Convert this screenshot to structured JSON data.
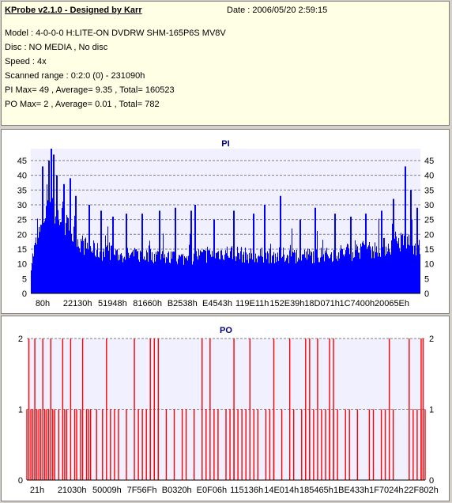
{
  "header": {
    "title": "KProbe v2.1.0 - Designed by Karr",
    "date": "Date : 2006/05/20 2:59:15",
    "lines": [
      "Model : 4-0-0-0 H:LITE-ON DVDRW SHM-165P6S MV8V",
      "Disc : NO MEDIA , No disc",
      "Speed : 4x",
      "Scanned range : 0:2:0 (0) - 231090h",
      "PI Max= 49 , Average= 9.35 , Total= 160523",
      "PO Max= 2 , Average= 0.01 , Total= 782"
    ]
  },
  "colors": {
    "pi": "#0000ff",
    "po": "#ff0000",
    "plot_bg": "#f0f0ff",
    "grid": "#808080"
  },
  "chart_data": [
    {
      "type": "bar",
      "title": "PI",
      "ylim": [
        0,
        49
      ],
      "yticks": [
        0,
        5,
        10,
        15,
        20,
        25,
        30,
        35,
        40,
        45
      ],
      "xtick_labels": [
        "80h",
        "22130h",
        "51948h",
        "81660h",
        "B2538h",
        "E4543h",
        "119E11h",
        "152E39h",
        "18D071h",
        "1C7400h",
        "20065Eh"
      ],
      "grid": true,
      "profile": [
        [
          0,
          10
        ],
        [
          0.01,
          16
        ],
        [
          0.025,
          22
        ],
        [
          0.04,
          30
        ],
        [
          0.05,
          34
        ],
        [
          0.055,
          36
        ],
        [
          0.06,
          27
        ],
        [
          0.075,
          26
        ],
        [
          0.085,
          24
        ],
        [
          0.1,
          21
        ],
        [
          0.12,
          18
        ],
        [
          0.14,
          16
        ],
        [
          0.16,
          15
        ],
        [
          0.18,
          14
        ],
        [
          0.2,
          14
        ],
        [
          0.23,
          13
        ],
        [
          0.26,
          13
        ],
        [
          0.3,
          13
        ],
        [
          0.33,
          13
        ],
        [
          0.36,
          12
        ],
        [
          0.4,
          12
        ],
        [
          0.43,
          13
        ],
        [
          0.46,
          13
        ],
        [
          0.49,
          14
        ],
        [
          0.52,
          14
        ],
        [
          0.55,
          13
        ],
        [
          0.58,
          13
        ],
        [
          0.61,
          13
        ],
        [
          0.64,
          13
        ],
        [
          0.67,
          13
        ],
        [
          0.7,
          13
        ],
        [
          0.73,
          13
        ],
        [
          0.76,
          13
        ],
        [
          0.79,
          14
        ],
        [
          0.82,
          14
        ],
        [
          0.85,
          15
        ],
        [
          0.88,
          15
        ],
        [
          0.91,
          16
        ],
        [
          0.94,
          17
        ],
        [
          0.96,
          18
        ],
        [
          0.98,
          17
        ],
        [
          1,
          15
        ]
      ],
      "peaks": [
        [
          0.03,
          43
        ],
        [
          0.045,
          45
        ],
        [
          0.052,
          49
        ],
        [
          0.058,
          47
        ],
        [
          0.066,
          40
        ],
        [
          0.085,
          37
        ],
        [
          0.1,
          39
        ],
        [
          0.115,
          33
        ],
        [
          0.15,
          30
        ],
        [
          0.18,
          28
        ],
        [
          0.21,
          26
        ],
        [
          0.245,
          27
        ],
        [
          0.285,
          27
        ],
        [
          0.33,
          28
        ],
        [
          0.37,
          29
        ],
        [
          0.41,
          28
        ],
        [
          0.42,
          30
        ],
        [
          0.47,
          25
        ],
        [
          0.52,
          28
        ],
        [
          0.57,
          27
        ],
        [
          0.6,
          30
        ],
        [
          0.64,
          33
        ],
        [
          0.69,
          25
        ],
        [
          0.73,
          29
        ],
        [
          0.78,
          27
        ],
        [
          0.82,
          26
        ],
        [
          0.86,
          27
        ],
        [
          0.9,
          28
        ],
        [
          0.93,
          32
        ],
        [
          0.96,
          43
        ],
        [
          0.975,
          35
        ],
        [
          0.99,
          29
        ]
      ]
    },
    {
      "type": "bar",
      "title": "PO",
      "ylim": [
        0,
        2
      ],
      "yticks": [
        0,
        1,
        2
      ],
      "xtick_labels": [
        "21h",
        "21030h",
        "50009h",
        "7F56Fh",
        "B0320h",
        "E0F06h",
        "115136h",
        "14E014h",
        "185465h",
        "1BE433h",
        "1F7024h",
        "22F802h"
      ],
      "grid": true,
      "value_two_positions": [
        0.005,
        0.02,
        0.04,
        0.06,
        0.09,
        0.11,
        0.14,
        0.2,
        0.27,
        0.31,
        0.32,
        0.33,
        0.44,
        0.46,
        0.52,
        0.56,
        0.62,
        0.66,
        0.7,
        0.71,
        0.73,
        0.76,
        0.77,
        0.91,
        0.96,
        0.99,
        0.995
      ],
      "value_one_positions": [
        0.0,
        0.01,
        0.015,
        0.02,
        0.025,
        0.03,
        0.035,
        0.045,
        0.05,
        0.055,
        0.065,
        0.07,
        0.08,
        0.095,
        0.1,
        0.12,
        0.125,
        0.135,
        0.15,
        0.155,
        0.16,
        0.175,
        0.19,
        0.21,
        0.22,
        0.23,
        0.25,
        0.28,
        0.29,
        0.3,
        0.31,
        0.32,
        0.33,
        0.35,
        0.37,
        0.39,
        0.4,
        0.42,
        0.45,
        0.47,
        0.48,
        0.5,
        0.51,
        0.52,
        0.53,
        0.54,
        0.55,
        0.57,
        0.58,
        0.6,
        0.61,
        0.62,
        0.64,
        0.67,
        0.69,
        0.7,
        0.71,
        0.72,
        0.74,
        0.75,
        0.76,
        0.77,
        0.78,
        0.8,
        0.81,
        0.83,
        0.86,
        0.87,
        0.89,
        0.9,
        0.92,
        0.97,
        0.98,
        0.99,
        1.0
      ]
    }
  ]
}
